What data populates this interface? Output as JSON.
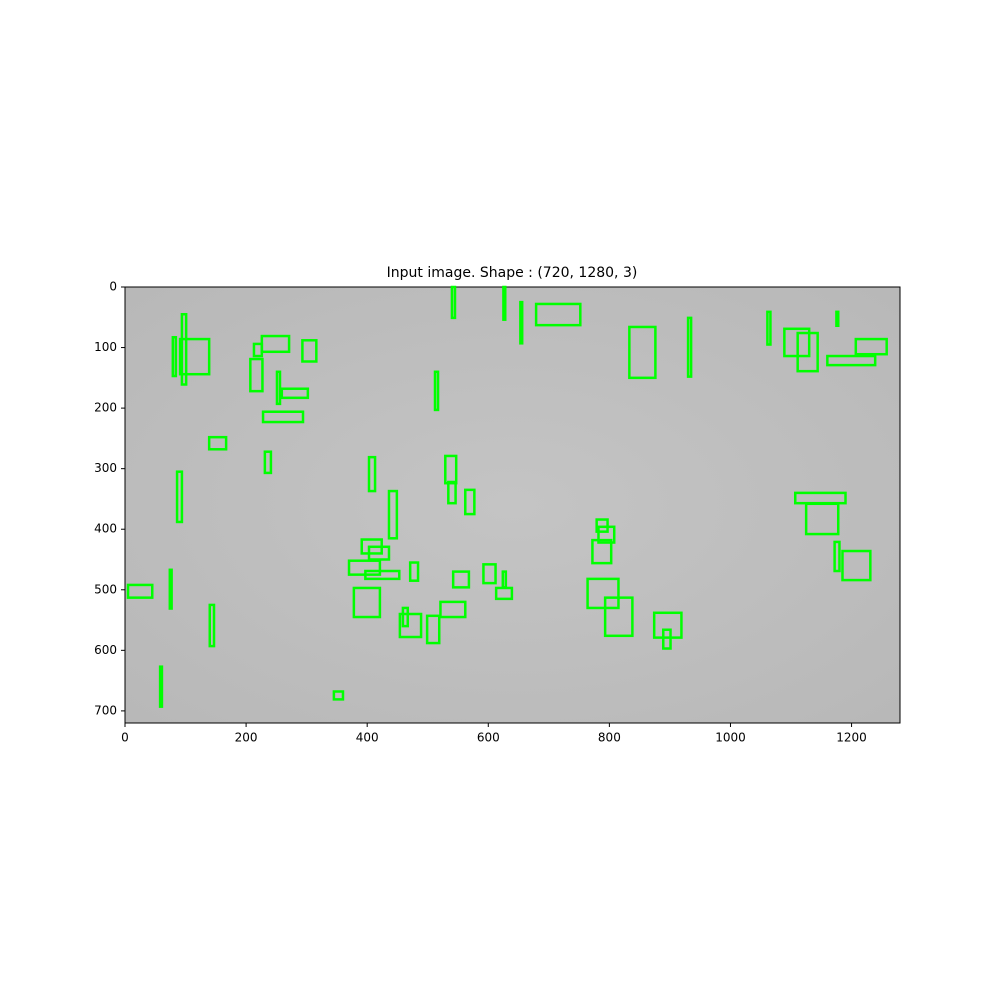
{
  "chart_data": {
    "type": "image",
    "title": "Input image. Shape : (720, 1280, 3)",
    "xlim": [
      0,
      1280
    ],
    "ylim": [
      720,
      0
    ],
    "xticks": [
      0,
      200,
      400,
      600,
      800,
      1000,
      1200
    ],
    "yticks": [
      0,
      100,
      200,
      300,
      400,
      500,
      600,
      700
    ],
    "box_color": "#00ff00",
    "boxes": [
      [
        679,
        28,
        73,
        35
      ],
      [
        91,
        86,
        48,
        58
      ],
      [
        226,
        81,
        45,
        26
      ],
      [
        293,
        88,
        23,
        35
      ],
      [
        213,
        94,
        13,
        20
      ],
      [
        207,
        119,
        20,
        53
      ],
      [
        259,
        168,
        43,
        15
      ],
      [
        228,
        206,
        66,
        17
      ],
      [
        833,
        66,
        43,
        84
      ],
      [
        1089,
        69,
        41,
        45
      ],
      [
        1111,
        76,
        33,
        63
      ],
      [
        1160,
        114,
        79,
        15
      ],
      [
        1207,
        86,
        51,
        25
      ],
      [
        139,
        248,
        28,
        20
      ],
      [
        231,
        272,
        10,
        35
      ],
      [
        86,
        305,
        8,
        83
      ],
      [
        403,
        281,
        10,
        56
      ],
      [
        529,
        279,
        18,
        45
      ],
      [
        534,
        322,
        12,
        35
      ],
      [
        562,
        335,
        15,
        40
      ],
      [
        436,
        337,
        13,
        78
      ],
      [
        1107,
        340,
        83,
        17
      ],
      [
        1125,
        358,
        53,
        50
      ],
      [
        779,
        384,
        18,
        20
      ],
      [
        782,
        396,
        26,
        26
      ],
      [
        772,
        418,
        31,
        38
      ],
      [
        391,
        417,
        33,
        23
      ],
      [
        403,
        429,
        33,
        21
      ],
      [
        370,
        452,
        51,
        23
      ],
      [
        397,
        469,
        56,
        13
      ],
      [
        471,
        455,
        13,
        30
      ],
      [
        1172,
        421,
        8,
        48
      ],
      [
        1185,
        436,
        46,
        48
      ],
      [
        5,
        492,
        40,
        21
      ],
      [
        542,
        470,
        26,
        26
      ],
      [
        592,
        458,
        20,
        31
      ],
      [
        613,
        497,
        26,
        18
      ],
      [
        764,
        482,
        51,
        48
      ],
      [
        793,
        513,
        45,
        63
      ],
      [
        378,
        497,
        43,
        48
      ],
      [
        521,
        520,
        41,
        25
      ],
      [
        454,
        540,
        35,
        38
      ],
      [
        459,
        530,
        8,
        30
      ],
      [
        499,
        543,
        20,
        45
      ],
      [
        874,
        538,
        45,
        41
      ],
      [
        889,
        566,
        12,
        31
      ],
      [
        140,
        525,
        7,
        68
      ],
      [
        345,
        668,
        15,
        13
      ],
      [
        94,
        45,
        7,
        116
      ],
      [
        79,
        83,
        5,
        64
      ],
      [
        251,
        140,
        5,
        53
      ],
      [
        512,
        140,
        5,
        63
      ],
      [
        540,
        0,
        5,
        51
      ],
      [
        625,
        0,
        3,
        54
      ],
      [
        653,
        25,
        3,
        68
      ],
      [
        930,
        51,
        5,
        97
      ],
      [
        1061,
        41,
        5,
        54
      ],
      [
        1175,
        41,
        3,
        23
      ],
      [
        74,
        467,
        3,
        64
      ],
      [
        58,
        627,
        3,
        66
      ],
      [
        624,
        470,
        5,
        26
      ]
    ]
  }
}
